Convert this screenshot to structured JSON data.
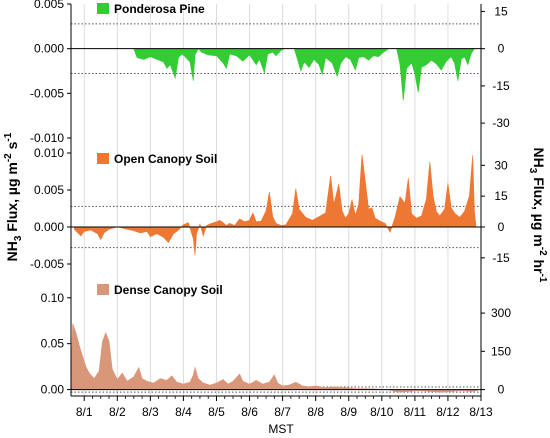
{
  "chart_data": {
    "type": "area",
    "ylabel_left": "NH3 Flux, µg m-2 s-1",
    "ylabel_right": "NH3 Flux, µg m-2 hr-1",
    "xlabel": "MST",
    "x_ticks": [
      "8/1",
      "8/2",
      "8/3",
      "8/4",
      "8/5",
      "8/6",
      "8/7",
      "8/8",
      "8/9",
      "8/10",
      "8/11",
      "8/12",
      "8/13"
    ],
    "x_range_days": [
      0.6,
      13.0
    ],
    "panels": [
      {
        "name": "Ponderosa Pine",
        "color": "#33cc33",
        "left_ylim": [
          -0.01,
          0.005
        ],
        "left_ticks": [
          "0.005",
          "0.000",
          "-0.005",
          "-0.010"
        ],
        "left_tick_values": [
          0.005,
          0.0,
          -0.005,
          -0.01
        ],
        "right_ticks": [
          "15",
          "0",
          "-15",
          "-30"
        ],
        "right_tick_values": [
          0.0041667,
          0.0,
          -0.0041667,
          -0.0083333
        ],
        "reference_lines": [
          0.00278,
          -0.00278
        ],
        "series": [
          [
            2.5,
            0
          ],
          [
            2.6,
            -0.001
          ],
          [
            2.8,
            -0.0012
          ],
          [
            3.0,
            -0.0009
          ],
          [
            3.2,
            -0.0012
          ],
          [
            3.4,
            -0.0015
          ],
          [
            3.5,
            -0.0022
          ],
          [
            3.6,
            -0.0018
          ],
          [
            3.75,
            -0.0033
          ],
          [
            3.85,
            -0.001
          ],
          [
            3.95,
            -0.0006
          ],
          [
            4.05,
            -0.0009
          ],
          [
            4.2,
            -0.0015
          ],
          [
            4.3,
            -0.0036
          ],
          [
            4.35,
            -0.0007
          ],
          [
            4.45,
            0
          ],
          [
            4.55,
            -0.0004
          ],
          [
            4.75,
            -0.0007
          ],
          [
            5.0,
            -0.0008
          ],
          [
            5.2,
            -0.0016
          ],
          [
            5.3,
            -0.0022
          ],
          [
            5.4,
            -0.0006
          ],
          [
            5.6,
            -0.0008
          ],
          [
            5.8,
            -0.0014
          ],
          [
            6.0,
            -0.0007
          ],
          [
            6.2,
            -0.0018
          ],
          [
            6.3,
            -0.0012
          ],
          [
            6.45,
            -0.0027
          ],
          [
            6.55,
            -0.0006
          ],
          [
            6.7,
            -0.0004
          ],
          [
            6.8,
            -0.0008
          ],
          [
            6.95,
            -0.0002
          ],
          [
            7.05,
            0
          ],
          [
            7.35,
            0
          ],
          [
            7.45,
            -0.0012
          ],
          [
            7.55,
            -0.0025
          ],
          [
            7.65,
            -0.0015
          ],
          [
            7.8,
            -0.0021
          ],
          [
            7.95,
            -0.0012
          ],
          [
            8.1,
            -0.0018
          ],
          [
            8.2,
            -0.0029
          ],
          [
            8.3,
            -0.001
          ],
          [
            8.5,
            -0.0016
          ],
          [
            8.65,
            -0.0031
          ],
          [
            8.75,
            -0.0017
          ],
          [
            8.9,
            -0.0009
          ],
          [
            9.05,
            -0.0012
          ],
          [
            9.2,
            -0.0024
          ],
          [
            9.3,
            -0.001
          ],
          [
            9.45,
            -0.0009
          ],
          [
            9.6,
            -0.0013
          ],
          [
            9.75,
            -0.0008
          ],
          [
            9.9,
            -0.0009
          ],
          [
            10.05,
            -0.0004
          ],
          [
            10.2,
            0
          ],
          [
            10.45,
            0
          ],
          [
            10.55,
            -0.0018
          ],
          [
            10.65,
            -0.0058
          ],
          [
            10.75,
            -0.0022
          ],
          [
            10.9,
            -0.0016
          ],
          [
            11.0,
            -0.0028
          ],
          [
            11.1,
            -0.0049
          ],
          [
            11.2,
            -0.0021
          ],
          [
            11.35,
            -0.0018
          ],
          [
            11.5,
            -0.0013
          ],
          [
            11.65,
            -0.0017
          ],
          [
            11.8,
            -0.0024
          ],
          [
            11.95,
            -0.0014
          ],
          [
            12.1,
            -0.0009
          ],
          [
            12.2,
            -0.0016
          ],
          [
            12.3,
            -0.0036
          ],
          [
            12.4,
            -0.0012
          ],
          [
            12.5,
            -0.0009
          ],
          [
            12.6,
            -0.0018
          ],
          [
            12.7,
            -0.0006
          ],
          [
            12.8,
            0
          ]
        ]
      },
      {
        "name": "Open Canopy Soil",
        "color": "#ee7733",
        "left_ylim": [
          -0.005,
          0.01
        ],
        "left_ticks": [
          "0.010",
          "0.005",
          "0.000",
          "-0.005"
        ],
        "left_tick_values": [
          0.01,
          0.005,
          0.0,
          -0.005
        ],
        "right_ticks": [
          "30",
          "15",
          "0",
          "-15"
        ],
        "right_tick_values": [
          0.0083333,
          0.0041667,
          0.0,
          -0.0041667
        ],
        "reference_lines": [
          0.00278,
          -0.00278
        ],
        "series": [
          [
            0.7,
            -0.0003
          ],
          [
            0.9,
            -0.0012
          ],
          [
            1.0,
            -0.0006
          ],
          [
            1.2,
            -0.0004
          ],
          [
            1.4,
            -0.0009
          ],
          [
            1.5,
            -0.0017
          ],
          [
            1.6,
            -0.0008
          ],
          [
            1.75,
            -0.0003
          ],
          [
            2.0,
            0
          ],
          [
            2.2,
            -0.0002
          ],
          [
            2.5,
            -0.0005
          ],
          [
            2.7,
            -0.0008
          ],
          [
            2.9,
            -0.0006
          ],
          [
            3.0,
            -0.0013
          ],
          [
            3.2,
            -0.0009
          ],
          [
            3.4,
            -0.0014
          ],
          [
            3.55,
            -0.0021
          ],
          [
            3.7,
            -0.0009
          ],
          [
            3.85,
            -0.0004
          ],
          [
            4.0,
            0.0003
          ],
          [
            4.15,
            0.0006
          ],
          [
            4.3,
            -0.0016
          ],
          [
            4.35,
            -0.0038
          ],
          [
            4.4,
            -0.0009
          ],
          [
            4.5,
            0.0004
          ],
          [
            4.6,
            -0.0012
          ],
          [
            4.7,
            0.0002
          ],
          [
            4.85,
            0.0005
          ],
          [
            5.0,
            0.0007
          ],
          [
            5.1,
            0.0009
          ],
          [
            5.2,
            0.0006
          ],
          [
            5.3,
            0.0002
          ],
          [
            5.4,
            0.0005
          ],
          [
            5.55,
            0.0002
          ],
          [
            5.7,
            0.0011
          ],
          [
            5.85,
            0.0007
          ],
          [
            6.0,
            0.0009
          ],
          [
            6.1,
            0.0019
          ],
          [
            6.2,
            0.0007
          ],
          [
            6.35,
            0.0008
          ],
          [
            6.5,
            0.0022
          ],
          [
            6.6,
            0.0047
          ],
          [
            6.7,
            0.0014
          ],
          [
            6.8,
            0.0005
          ],
          [
            6.95,
            0.0002
          ],
          [
            7.1,
            0.0003
          ],
          [
            7.3,
            0.0018
          ],
          [
            7.4,
            0.0052
          ],
          [
            7.5,
            0.0024
          ],
          [
            7.7,
            0.0013
          ],
          [
            7.9,
            0.0009
          ],
          [
            8.1,
            0.0014
          ],
          [
            8.3,
            0.0019
          ],
          [
            8.45,
            0.0069
          ],
          [
            8.55,
            0.0031
          ],
          [
            8.7,
            0.0058
          ],
          [
            8.8,
            0.0022
          ],
          [
            8.9,
            0.0012
          ],
          [
            9.0,
            0.0018
          ],
          [
            9.1,
            0.0037
          ],
          [
            9.2,
            0.0016
          ],
          [
            9.3,
            0.0031
          ],
          [
            9.4,
            0.0098
          ],
          [
            9.5,
            0.0062
          ],
          [
            9.6,
            0.0024
          ],
          [
            9.7,
            0.0026
          ],
          [
            9.8,
            0.0012
          ],
          [
            9.95,
            0.0008
          ],
          [
            10.1,
            0.0005
          ],
          [
            10.25,
            -0.0007
          ],
          [
            10.4,
            0.0013
          ],
          [
            10.55,
            0.0041
          ],
          [
            10.7,
            0.0032
          ],
          [
            10.8,
            0.0066
          ],
          [
            10.9,
            0.0018
          ],
          [
            11.05,
            0.0012
          ],
          [
            11.2,
            0.0015
          ],
          [
            11.35,
            0.0038
          ],
          [
            11.45,
            0.0088
          ],
          [
            11.55,
            0.0042
          ],
          [
            11.65,
            0.0021
          ],
          [
            11.75,
            0.0015
          ],
          [
            11.9,
            0.0024
          ],
          [
            12.0,
            0.0059
          ],
          [
            12.1,
            0.0026
          ],
          [
            12.2,
            0.0019
          ],
          [
            12.35,
            0.0013
          ],
          [
            12.5,
            0.0021
          ],
          [
            12.65,
            0.0042
          ],
          [
            12.75,
            0.0097
          ],
          [
            12.8,
            0.0022
          ],
          [
            12.85,
            0
          ]
        ]
      },
      {
        "name": "Dense Canopy Soil",
        "color": "#d9977a",
        "left_ylim": [
          -0.007,
          0.115
        ],
        "left_ticks": [
          "0.10",
          "0.05",
          "0.00"
        ],
        "left_tick_values": [
          0.1,
          0.05,
          0.0
        ],
        "right_ticks": [
          "300",
          "150",
          "0"
        ],
        "right_tick_values": [
          0.0833333,
          0.0416667,
          0.0
        ],
        "reference_lines": [
          0.0028,
          -0.0028
        ],
        "series": [
          [
            0.6,
            0.012
          ],
          [
            0.65,
            0.072
          ],
          [
            0.75,
            0.062
          ],
          [
            0.85,
            0.048
          ],
          [
            0.95,
            0.036
          ],
          [
            1.05,
            0.025
          ],
          [
            1.15,
            0.018
          ],
          [
            1.3,
            0.012
          ],
          [
            1.45,
            0.02
          ],
          [
            1.55,
            0.052
          ],
          [
            1.65,
            0.062
          ],
          [
            1.75,
            0.053
          ],
          [
            1.85,
            0.022
          ],
          [
            2.0,
            0.011
          ],
          [
            2.15,
            0.018
          ],
          [
            2.3,
            0.009
          ],
          [
            2.5,
            0.014
          ],
          [
            2.65,
            0.024
          ],
          [
            2.75,
            0.012
          ],
          [
            2.9,
            0.009
          ],
          [
            3.1,
            0.007
          ],
          [
            3.3,
            0.012
          ],
          [
            3.5,
            0.01
          ],
          [
            3.65,
            0.015
          ],
          [
            3.8,
            0.008
          ],
          [
            4.0,
            0.006
          ],
          [
            4.2,
            0.008
          ],
          [
            4.3,
            0.016
          ],
          [
            4.35,
            0.024
          ],
          [
            4.45,
            0.012
          ],
          [
            4.6,
            0.007
          ],
          [
            4.8,
            0.005
          ],
          [
            5.0,
            0.007
          ],
          [
            5.2,
            0.011
          ],
          [
            5.35,
            0.006
          ],
          [
            5.5,
            0.009
          ],
          [
            5.7,
            0.017
          ],
          [
            5.8,
            0.009
          ],
          [
            6.0,
            0.006
          ],
          [
            6.2,
            0.01
          ],
          [
            6.4,
            0.006
          ],
          [
            6.6,
            0.008
          ],
          [
            6.75,
            0.016
          ],
          [
            6.85,
            0.007
          ],
          [
            7.0,
            0.004
          ],
          [
            7.2,
            0.005
          ],
          [
            7.4,
            0.008
          ],
          [
            7.6,
            0.004
          ],
          [
            7.8,
            0.003
          ],
          [
            8.0,
            0.004
          ],
          [
            8.3,
            0.002
          ],
          [
            8.6,
            0.003
          ],
          [
            8.9,
            0.002
          ],
          [
            9.2,
            0.001
          ],
          [
            9.5,
            0.001
          ],
          [
            9.8,
            0.0005
          ],
          [
            10.1,
            0
          ],
          [
            10.3,
            -0.001
          ],
          [
            10.5,
            -0.003
          ],
          [
            10.8,
            -0.002
          ],
          [
            11.1,
            -0.001
          ],
          [
            11.5,
            -0.002
          ],
          [
            11.8,
            -0.003
          ],
          [
            12.1,
            -0.002
          ],
          [
            12.4,
            -0.001
          ],
          [
            12.7,
            -0.002
          ],
          [
            12.9,
            -0.001
          ]
        ]
      }
    ]
  }
}
